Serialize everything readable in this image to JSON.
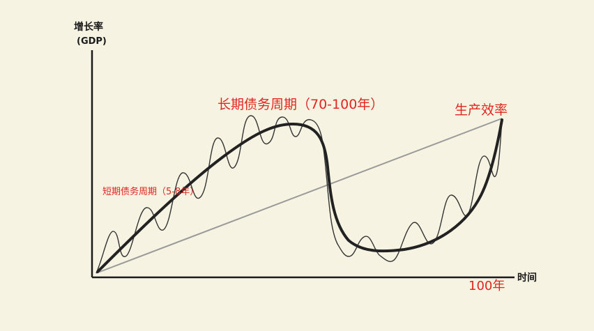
{
  "y_axis": {
    "title": "增长率",
    "unit": "(GDP)"
  },
  "x_axis": {
    "title": "时间",
    "end_label": "100年"
  },
  "labels": {
    "long_cycle": "长期债务周期（70-100年）",
    "short_cycle": "短期债务周期（5-8年）",
    "productivity": "生产效率"
  },
  "colors": {
    "background": "#f6f3e2",
    "axis": "#1a1a1a",
    "long_cycle_curve": "#222222",
    "short_cycle_curve": "#333333",
    "productivity_line": "#9a9a9a",
    "annotation": "#e0261f"
  }
}
